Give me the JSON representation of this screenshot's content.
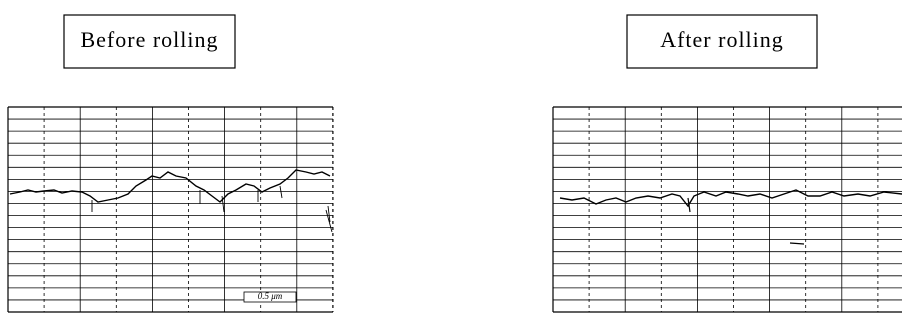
{
  "panels": [
    {
      "label": "Before rolling",
      "scale_note": "0.5 μm"
    },
    {
      "label": "After rolling"
    }
  ]
}
